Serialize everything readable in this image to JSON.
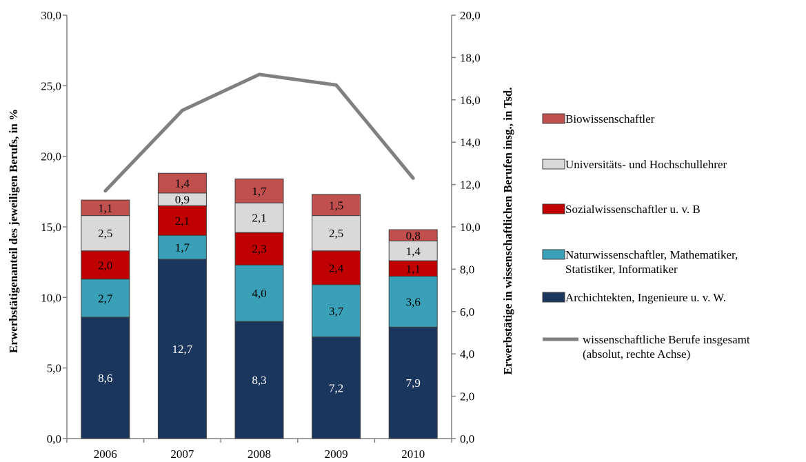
{
  "chart_data": {
    "type": "bar",
    "stacked": true,
    "categories": [
      "2006",
      "2007",
      "2008",
      "2009",
      "2010"
    ],
    "series": [
      {
        "name": "Archichtekten, Ingenieure u. v. W.",
        "color": "#1b365d",
        "values": [
          8.6,
          12.7,
          8.3,
          7.2,
          7.9
        ],
        "labels": [
          "8,6",
          "12,7",
          "8,3",
          "7,2",
          "7,9"
        ],
        "label_color": "#ffffff"
      },
      {
        "name": "Naturwissenschaftler, Mathematiker, Statistiker, Informatiker",
        "color": "#3aa0b8",
        "values": [
          2.7,
          1.7,
          4.0,
          3.7,
          3.6
        ],
        "labels": [
          "2,7",
          "1,7",
          "4,0",
          "3,7",
          "3,6"
        ],
        "label_color": "#000000"
      },
      {
        "name": "Sozialwissenschaftler u. v. B",
        "color": "#c00000",
        "values": [
          2.0,
          2.1,
          2.3,
          2.4,
          1.1
        ],
        "labels": [
          "2,0",
          "2,1",
          "2,3",
          "2,4",
          "1,1"
        ],
        "label_color": "#000000"
      },
      {
        "name": "Universitäts- und Hochschullehrer",
        "color": "#d9d9d9",
        "values": [
          2.5,
          0.9,
          2.1,
          2.5,
          1.4
        ],
        "labels": [
          "2,5",
          "0,9",
          "2,1",
          "2,5",
          "1,4"
        ],
        "label_color": "#000000"
      },
      {
        "name": "Biowissenschaftler",
        "color": "#c0504d",
        "values": [
          1.1,
          1.4,
          1.7,
          1.5,
          0.8
        ],
        "labels": [
          "1,1",
          "1,4",
          "1,7",
          "1,5",
          "0,8"
        ],
        "label_color": "#000000"
      }
    ],
    "line_series": {
      "name": "wissenschaftliche Berufe insgesamt (absolut, rechte Achse)",
      "legend_lines": [
        "wissenschaftliche Berufe insgesamt",
        "(absolut, rechte Achse)"
      ],
      "color": "#808080",
      "axis": "right",
      "values": [
        11.7,
        15.5,
        17.2,
        16.7,
        12.3
      ]
    },
    "legend_lines": {
      "Naturwissenschaftler, Mathematiker, Statistiker, Informatiker": [
        "Naturwissenschaftler, Mathematiker,",
        "Statistiker, Informatiker"
      ]
    },
    "ylabel": "Erwerbstätigenanteil des jeweiligen Berufs, in %",
    "y2label": "Erwerbstätige in wissenschaftlichen Berufen insg., in Tsd.",
    "ylim": [
      0,
      30
    ],
    "y2lim": [
      0,
      20
    ],
    "yticks": [
      "0,0",
      "5,0",
      "10,0",
      "15,0",
      "20,0",
      "25,0",
      "30,0"
    ],
    "y2ticks": [
      "0,0",
      "2,0",
      "4,0",
      "6,0",
      "8,0",
      "10,0",
      "12,0",
      "14,0",
      "16,0",
      "18,0",
      "20,0"
    ],
    "grid": false,
    "legend_position": "right"
  }
}
